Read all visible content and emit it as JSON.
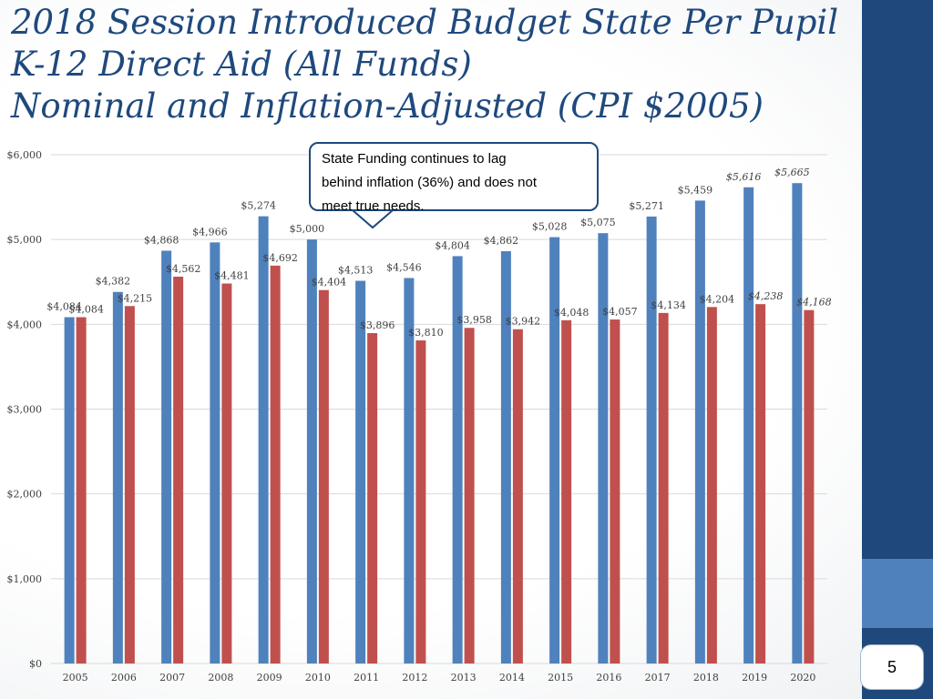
{
  "slide": {
    "title_lines": [
      "2018 Session Introduced Budget State Per Pupil",
      "K-12 Direct Aid (All Funds)",
      "Nominal and Inflation-Adjusted (CPI $2005)"
    ],
    "callout_lines": [
      "State Funding continues to lag",
      "behind inflation (36%) and does not",
      "meet true needs."
    ],
    "page_number": "5",
    "colors": {
      "primary": "#1f497d",
      "accent": "#4f81bd",
      "nominal_bar": "#4f81bd",
      "adjusted_bar": "#c0504d"
    }
  },
  "chart_data": {
    "type": "bar",
    "title": "2018 Session Introduced Budget State Per Pupil K-12 Direct Aid (All Funds) Nominal and Inflation-Adjusted (CPI $2005)",
    "xlabel": "",
    "ylabel": "",
    "ylim": [
      0,
      6000
    ],
    "grid": true,
    "categories": [
      "2005",
      "2006",
      "2007",
      "2008",
      "2009",
      "2010",
      "2011",
      "2012",
      "2013",
      "2014",
      "2015",
      "2016",
      "2017",
      "2018",
      "2019",
      "2020"
    ],
    "y_ticks": [
      0,
      1000,
      2000,
      3000,
      4000,
      5000,
      6000
    ],
    "y_tick_labels": [
      "$0",
      "$1,000",
      "$2,000",
      "$3,000",
      "$4,000",
      "$5,000",
      "$6,000"
    ],
    "series": [
      {
        "values": [
          4084,
          4382,
          4868,
          4966,
          5274,
          5000,
          4513,
          4546,
          4804,
          4862,
          5028,
          5075,
          5271,
          5459,
          5616,
          5665
        ],
        "labels": [
          "$4,084",
          "$4,382",
          "$4,868",
          "$4,966",
          "$5,274",
          "$5,000",
          "$4,513",
          "$4,546",
          "$4,804",
          "$4,862",
          "$5,028",
          "$5,075",
          "$5,271",
          "$5,459",
          "$5,616",
          "$5,665"
        ],
        "color": "#4f81bd"
      },
      {
        "values": [
          4084,
          4215,
          4562,
          4481,
          4692,
          4404,
          3896,
          3810,
          3958,
          3942,
          4048,
          4057,
          4134,
          4204,
          4238,
          4168
        ],
        "labels": [
          "$4,084",
          "$4,215",
          "$4,562",
          "$4,481",
          "$4,692",
          "$4,404",
          "$3,896",
          "$3,810",
          "$3,958",
          "$3,942",
          "$4,048",
          "$4,057",
          "$4,134",
          "$4,204",
          "$4,238",
          "$4,168"
        ],
        "color": "#c0504d"
      }
    ]
  }
}
